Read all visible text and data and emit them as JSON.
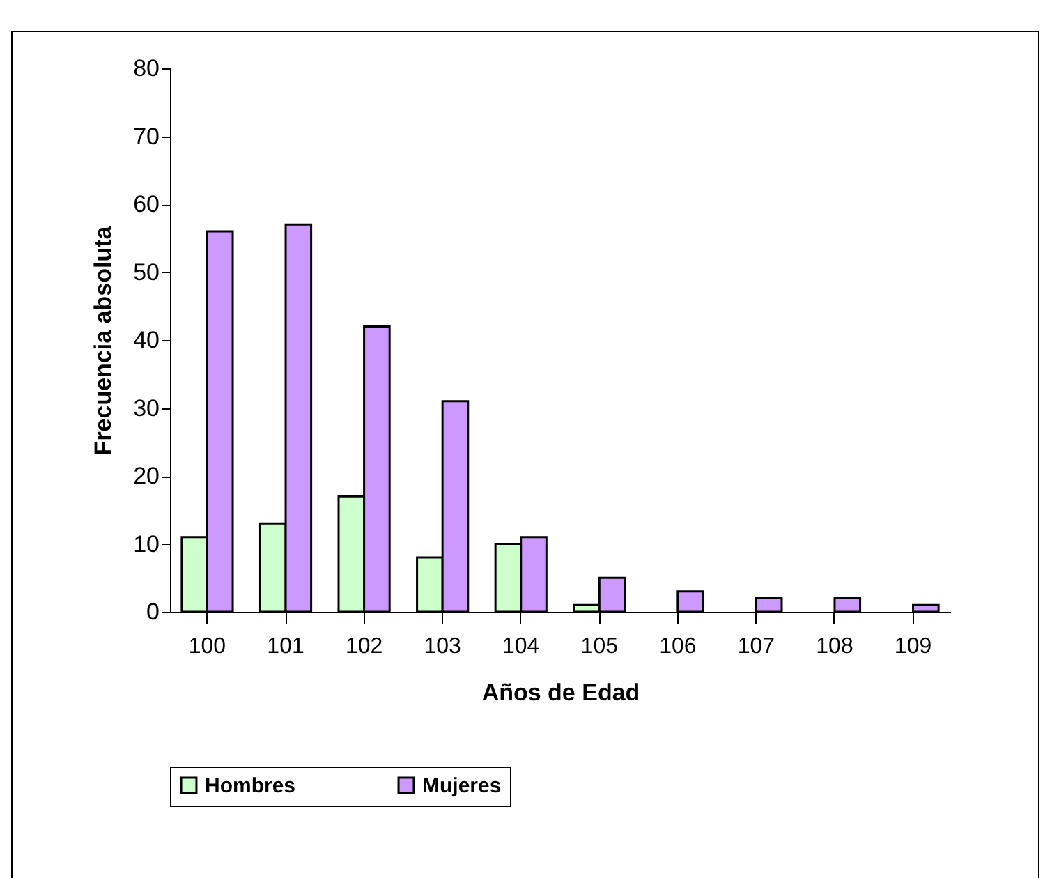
{
  "chart_data": {
    "type": "bar",
    "xlabel": "Años de Edad",
    "ylabel": "Frecuencia absoluta",
    "categories": [
      "100",
      "101",
      "102",
      "103",
      "104",
      "105",
      "106",
      "107",
      "108",
      "109"
    ],
    "series": [
      {
        "name": "Hombres",
        "color": "#ccffcc",
        "values": [
          11,
          13,
          17,
          8,
          10,
          1,
          null,
          null,
          null,
          null
        ]
      },
      {
        "name": "Mujeres",
        "color": "#cc99ff",
        "values": [
          56,
          57,
          42,
          31,
          11,
          5,
          3,
          2,
          2,
          1
        ]
      }
    ],
    "ylim": [
      0,
      80
    ],
    "yticks": [
      0,
      10,
      20,
      30,
      40,
      50,
      60,
      70,
      80
    ],
    "grid": false,
    "legend": "bottom"
  }
}
